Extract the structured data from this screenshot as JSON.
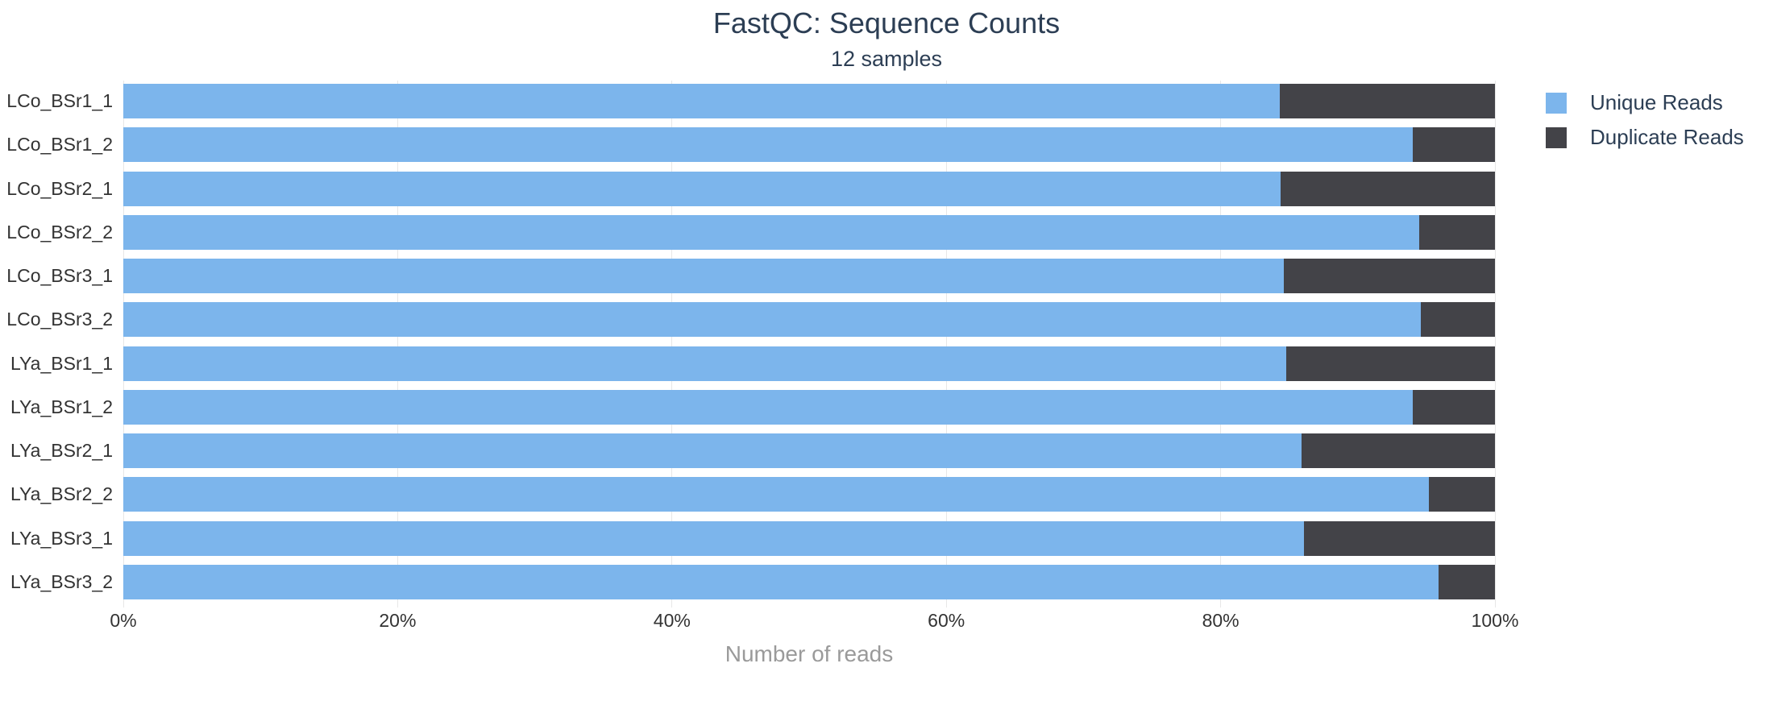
{
  "colors": {
    "unique_reads": "#7cb5ec",
    "duplicate_reads": "#434348",
    "title_text": "#2c3e54",
    "tick_text": "#333333",
    "axis_title_text": "#9a9a9a",
    "gridline": "#e7e7e7",
    "background": "#ffffff"
  },
  "chart_data": {
    "type": "bar",
    "orientation": "horizontal",
    "stacked": true,
    "title": "FastQC: Sequence Counts",
    "subtitle": "12 samples",
    "xlabel": "Number of reads",
    "x_unit": "percent",
    "xlim": [
      0,
      100
    ],
    "x_tick_labels": [
      "0%",
      "20%",
      "40%",
      "60%",
      "80%",
      "100%"
    ],
    "grid": true,
    "legend_position": "right",
    "categories": [
      "LCo_BSr1_1",
      "LCo_BSr1_2",
      "LCo_BSr2_1",
      "LCo_BSr2_2",
      "LCo_BSr3_1",
      "LCo_BSr3_2",
      "LYa_BSr1_1",
      "LYa_BSr1_2",
      "LYa_BSr2_1",
      "LYa_BSr2_2",
      "LYa_BSr3_1",
      "LYa_BSr3_2"
    ],
    "series": [
      {
        "name": "Unique Reads",
        "color": "#7cb5ec",
        "values_pct": [
          84.3,
          94.0,
          84.4,
          94.5,
          84.6,
          94.6,
          84.8,
          94.0,
          85.9,
          95.2,
          86.1,
          95.9
        ]
      },
      {
        "name": "Duplicate Reads",
        "color": "#434348",
        "values_pct": [
          15.7,
          6.0,
          15.6,
          5.5,
          15.4,
          5.4,
          15.2,
          6.0,
          14.1,
          4.8,
          13.9,
          4.1
        ]
      }
    ]
  }
}
